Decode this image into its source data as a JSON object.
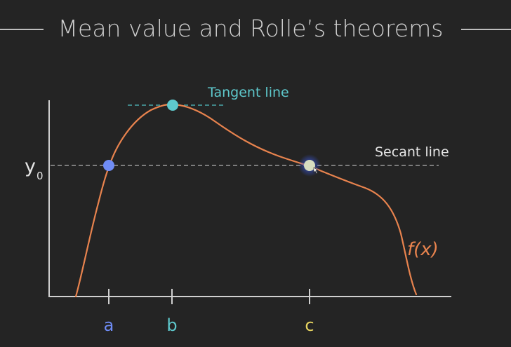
{
  "title": "Mean value and Rolle’s theorems",
  "axis": {
    "y_label": "y",
    "y_subscript": "0"
  },
  "points": {
    "a": {
      "label": "a",
      "color": "#6f8cf5"
    },
    "b": {
      "label": "b",
      "color": "#5ec8cc"
    },
    "c": {
      "label": "c",
      "color": "#e7d460"
    }
  },
  "lines": {
    "tangent": {
      "label": "Tangent line",
      "color": "#5ec8cc"
    },
    "secant": {
      "label": "Secant line",
      "color": "#e6e6e6"
    }
  },
  "function": {
    "label": "f(x)",
    "color": "#e8834e"
  },
  "colors": {
    "background": "#242424",
    "title_rule": "#bdbdbd",
    "axes": "#d0d0d0",
    "dashed": "#9a9a9a",
    "point_c_fill": "#d7dcc0",
    "point_c_glow": "#3a56d8"
  }
}
